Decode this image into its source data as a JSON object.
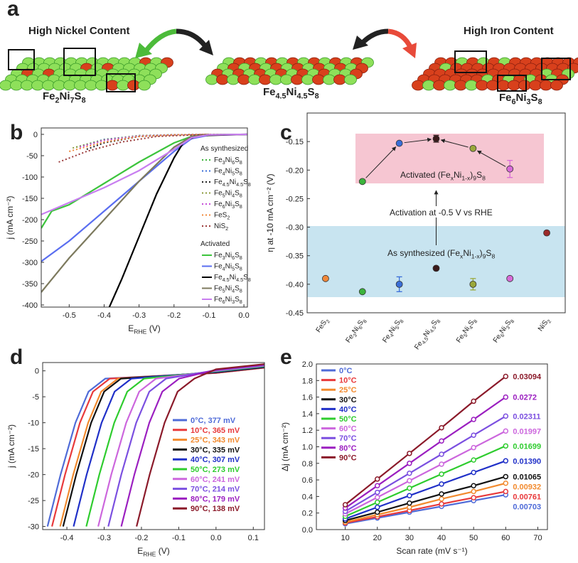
{
  "panel_labels": [
    "a",
    "b",
    "c",
    "d",
    "e"
  ],
  "panel_a": {
    "high_nickel": "High Nickel Content",
    "high_iron": "High Iron Content",
    "formulas": [
      "Fe2Ni7S8",
      "Fe4.5Ni4.5S8",
      "Fe6Ni3S8"
    ]
  },
  "chart_data": [
    {
      "type": "line",
      "xlabel": "ERHE (V)",
      "ylabel": "j (mA cm⁻²)",
      "xlim": [
        -0.58,
        0.01
      ],
      "ylim": [
        -405,
        15
      ],
      "xticks": [
        -0.5,
        -0.4,
        -0.3,
        -0.2,
        -0.1,
        {
          "value": 0,
          "label": "0.0"
        }
      ],
      "yticks": [
        0,
        -50,
        -100,
        -150,
        -200,
        -250,
        -300,
        -350,
        -400
      ],
      "series_groups": [
        {
          "title": "As synthesized",
          "style": "dotted",
          "series": [
            {
              "name": "Fe3Ni6S8",
              "color": "#3cb43c",
              "x": [
                -0.48,
                -0.4,
                -0.3,
                -0.2,
                -0.05
              ],
              "values": [
                -30,
                -12,
                -3,
                -1,
                0
              ]
            },
            {
              "name": "Fe4Ni5S8",
              "color": "#3a6ed8",
              "x": [
                -0.47,
                -0.4,
                -0.3,
                -0.2,
                -0.05
              ],
              "values": [
                -28,
                -12,
                -3,
                -1,
                0
              ]
            },
            {
              "name": "Fe4.5Ni4.5S8",
              "color": "#222222",
              "x": [
                -0.45,
                -0.4,
                -0.3,
                -0.2,
                -0.05
              ],
              "values": [
                -35,
                -20,
                -5,
                -1,
                0
              ]
            },
            {
              "name": "Fe5Ni4S8",
              "color": "#8a9a3a",
              "x": [
                -0.49,
                -0.4,
                -0.3,
                -0.2,
                -0.05
              ],
              "values": [
                -32,
                -13,
                -3,
                -1,
                0
              ]
            },
            {
              "name": "Fe6Ni3S8",
              "color": "#c64fd8",
              "x": [
                -0.47,
                -0.4,
                -0.3,
                -0.2,
                -0.05
              ],
              "values": [
                -30,
                -14,
                -4,
                -1,
                0
              ]
            },
            {
              "name": "FeS2",
              "color": "#f0883a",
              "x": [
                -0.5,
                -0.4,
                -0.3,
                -0.2,
                -0.05
              ],
              "values": [
                -40,
                -18,
                -5,
                -1,
                0
              ]
            },
            {
              "name": "NiS2",
              "color": "#9b3a3a",
              "x": [
                -0.53,
                -0.45,
                -0.35,
                -0.25,
                -0.1
              ],
              "values": [
                -65,
                -40,
                -18,
                -5,
                0
              ]
            }
          ]
        },
        {
          "title": "Activated",
          "style": "solid",
          "series": [
            {
              "name": "Fe3Ni6S8",
              "color": "#3cc43c",
              "x": [
                -0.58,
                -0.55,
                -0.5,
                -0.4,
                -0.3,
                -0.2,
                -0.15,
                -0.1,
                0.01
              ],
              "values": [
                -220,
                -180,
                -165,
                -115,
                -65,
                -20,
                -5,
                -1,
                0
              ]
            },
            {
              "name": "Fe4Ni5S8",
              "color": "#5a6ef0",
              "x": [
                -0.58,
                -0.5,
                -0.4,
                -0.3,
                -0.2,
                -0.15,
                -0.1,
                0.01
              ],
              "values": [
                -298,
                -250,
                -180,
                -110,
                -40,
                -10,
                -2,
                0
              ]
            },
            {
              "name": "Fe4.5Ni4.5S8",
              "color": "#000000",
              "x": [
                -0.385,
                -0.35,
                -0.3,
                -0.25,
                -0.2,
                -0.17,
                -0.13,
                0.01
              ],
              "values": [
                -405,
                -340,
                -240,
                -140,
                -55,
                -15,
                -3,
                0
              ]
            },
            {
              "name": "Fe5Ni4S8",
              "color": "#7d7a5e",
              "x": [
                -0.58,
                -0.5,
                -0.4,
                -0.3,
                -0.2,
                -0.15,
                -0.1,
                0.01
              ],
              "values": [
                -370,
                -290,
                -200,
                -110,
                -30,
                -5,
                -1,
                0
              ]
            },
            {
              "name": "Fe6Ni3S8",
              "color": "#c87ef0",
              "x": [
                -0.58,
                -0.5,
                -0.4,
                -0.3,
                -0.2,
                -0.15,
                -0.1,
                0.01
              ],
              "values": [
                -188,
                -160,
                -125,
                -85,
                -35,
                -8,
                -1,
                0
              ]
            }
          ]
        }
      ]
    },
    {
      "type": "scatter",
      "ylabel": "η at -10 mA cm⁻² (V)",
      "ylim": [
        -0.45,
        -0.1
      ],
      "yticks": [
        -0.15,
        {
          "value": -0.2,
          "label": "-0.20"
        },
        -0.25,
        {
          "value": -0.3,
          "label": "-0.30"
        },
        -0.35,
        {
          "value": -0.4,
          "label": "-0.40"
        },
        -0.45
      ],
      "categories": [
        "FeS2",
        "Fe3Ni6S8",
        "Fe4Ni5S8",
        "Fe4.5Ni4.5S8",
        "Fe5Ni4S8",
        "Fe6Ni3S8",
        "NiS2"
      ],
      "colors": [
        "#f0883a",
        "#3cb43c",
        "#3a6ed8",
        "#3a1a1a",
        "#9aa83a",
        "#d86ad8",
        "#9b2a2a"
      ],
      "series": [
        {
          "values": [
            -0.39,
            -0.413,
            -0.4,
            -0.372,
            -0.4,
            -0.39,
            -0.31
          ],
          "errors": [
            null,
            null,
            0.013,
            null,
            0.01,
            null,
            null
          ]
        },
        {
          "values": [
            null,
            -0.22,
            -0.153,
            -0.145,
            -0.162,
            -0.198,
            null
          ],
          "errors": [
            null,
            null,
            null,
            0.006,
            null,
            0.015,
            null
          ]
        }
      ],
      "annotations": [
        "Activated (FexNi1-x)9S8",
        "Activation at -0.5 V vs RHE",
        "As synthesized (FexNi1-x)9S8"
      ]
    },
    {
      "type": "line",
      "xlabel": "ERHE (V)",
      "ylabel": "j (mA cm⁻²)",
      "xlim": [
        -0.465,
        0.13
      ],
      "ylim": [
        -30.6,
        1.6
      ],
      "xticks": [
        -0.4,
        -0.3,
        -0.2,
        -0.1,
        {
          "value": 0,
          "label": "0.0"
        },
        0.1
      ],
      "yticks": [
        0,
        -5,
        -10,
        -15,
        -20,
        -25,
        -30
      ],
      "series": [
        {
          "name": "0°C, 377 mV",
          "color": "#4f6bd8",
          "x": [
            -0.452,
            -0.417,
            -0.377,
            -0.342,
            -0.297,
            0,
            0.13
          ],
          "values": [
            -30,
            -20,
            -10,
            -4,
            -1.5,
            -0.4,
            0.6
          ]
        },
        {
          "name": "10°C, 365 mV",
          "color": "#e8393b",
          "x": [
            -0.44,
            -0.405,
            -0.365,
            -0.33,
            -0.285,
            0,
            0.13
          ],
          "values": [
            -30,
            -20,
            -10,
            -4,
            -1.5,
            -0.4,
            0.6
          ]
        },
        {
          "name": "25°C, 343 mV",
          "color": "#f28a2e",
          "x": [
            -0.418,
            -0.383,
            -0.343,
            -0.308,
            -0.263,
            0,
            0.13
          ],
          "values": [
            -30,
            -20,
            -10,
            -4,
            -1.5,
            -0.3,
            0.7
          ]
        },
        {
          "name": "30°C, 335 mV",
          "color": "#111111",
          "x": [
            -0.41,
            -0.375,
            -0.335,
            -0.3,
            -0.255,
            0,
            0.13
          ],
          "values": [
            -30,
            -20,
            -10,
            -4,
            -1.5,
            -0.3,
            0.7
          ]
        },
        {
          "name": "40°C, 307 mV",
          "color": "#2030c8",
          "x": [
            -0.382,
            -0.347,
            -0.307,
            -0.272,
            -0.227,
            0,
            0.13
          ],
          "values": [
            -30,
            -20,
            -10,
            -4,
            -1.5,
            -0.2,
            0.8
          ]
        },
        {
          "name": "50°C, 273 mV",
          "color": "#2ecc2e",
          "x": [
            -0.348,
            -0.313,
            -0.273,
            -0.238,
            -0.193,
            0,
            0.13
          ],
          "values": [
            -30,
            -20,
            -10,
            -4,
            -1.5,
            -0.1,
            0.9
          ]
        },
        {
          "name": "60°C, 241 mV",
          "color": "#cc66dd",
          "x": [
            -0.316,
            -0.281,
            -0.241,
            -0.206,
            -0.161,
            0,
            0.13
          ],
          "values": [
            -30,
            -20,
            -10,
            -4,
            -1.5,
            0,
            1
          ]
        },
        {
          "name": "70°C, 214 mV",
          "color": "#7b4fe0",
          "x": [
            -0.289,
            -0.254,
            -0.214,
            -0.179,
            -0.134,
            0,
            0.13
          ],
          "values": [
            -30,
            -20,
            -10,
            -4,
            -1.5,
            0.1,
            1.1
          ]
        },
        {
          "name": "80°C, 179 mV",
          "color": "#9b1fc0",
          "x": [
            -0.254,
            -0.219,
            -0.179,
            -0.144,
            -0.099,
            0,
            0.13
          ],
          "values": [
            -30,
            -20,
            -10,
            -4,
            -1.5,
            0.2,
            1.2
          ]
        },
        {
          "name": "90°C, 138 mV",
          "color": "#8b1a2a",
          "x": [
            -0.213,
            -0.178,
            -0.138,
            -0.103,
            -0.058,
            0,
            0.13
          ],
          "values": [
            -30,
            -20,
            -10,
            -4,
            -1.5,
            0.3,
            1.3
          ]
        }
      ]
    },
    {
      "type": "line",
      "markers": true,
      "xlabel": "Scan rate (mV s⁻¹)",
      "ylabel": "Δj (mA cm⁻²)",
      "xlim": [
        1,
        73
      ],
      "ylim": [
        0,
        2
      ],
      "xticks": [
        10,
        20,
        30,
        40,
        50,
        60,
        70
      ],
      "yticks": [
        {
          "value": 0,
          "label": "0.0"
        },
        0.2,
        0.4,
        0.6,
        0.8,
        {
          "value": 1,
          "label": "1.0"
        },
        1.2,
        1.4,
        1.6,
        1.8,
        {
          "value": 2,
          "label": "2.0"
        }
      ],
      "x": [
        10,
        20,
        30,
        40,
        50,
        60
      ],
      "series": [
        {
          "name": "0°C",
          "color": "#4f6bd8",
          "slope": "0.00703",
          "values": [
            0.07,
            0.14,
            0.21,
            0.28,
            0.35,
            0.42
          ]
        },
        {
          "name": "10°C",
          "color": "#e8393b",
          "slope": "0.00761",
          "values": [
            0.08,
            0.155,
            0.23,
            0.31,
            0.385,
            0.46
          ]
        },
        {
          "name": "25°C",
          "color": "#f28a2e",
          "slope": "0.00932",
          "values": [
            0.09,
            0.18,
            0.27,
            0.37,
            0.46,
            0.56
          ]
        },
        {
          "name": "30°C",
          "color": "#111111",
          "slope": "0.01065",
          "values": [
            0.11,
            0.21,
            0.32,
            0.43,
            0.53,
            0.64
          ]
        },
        {
          "name": "40°C",
          "color": "#2030c8",
          "slope": "0.01390",
          "values": [
            0.13,
            0.27,
            0.41,
            0.55,
            0.69,
            0.83
          ]
        },
        {
          "name": "50°C",
          "color": "#2ecc2e",
          "slope": "0.01699",
          "values": [
            0.16,
            0.33,
            0.5,
            0.67,
            0.84,
            1.01
          ]
        },
        {
          "name": "60°C",
          "color": "#cc66dd",
          "slope": "0.01997",
          "values": [
            0.19,
            0.39,
            0.59,
            0.79,
            0.99,
            1.19
          ]
        },
        {
          "name": "70°C",
          "color": "#7b4fe0",
          "slope": "0.02311",
          "values": [
            0.22,
            0.45,
            0.68,
            0.91,
            1.14,
            1.37
          ]
        },
        {
          "name": "80°C",
          "color": "#9b1fc0",
          "slope": "0.0272",
          "values": [
            0.26,
            0.53,
            0.8,
            1.07,
            1.33,
            1.6
          ]
        },
        {
          "name": "90°C",
          "color": "#8b1a2a",
          "slope": "0.03094",
          "values": [
            0.3,
            0.61,
            0.92,
            1.23,
            1.55,
            1.85
          ]
        }
      ]
    }
  ]
}
